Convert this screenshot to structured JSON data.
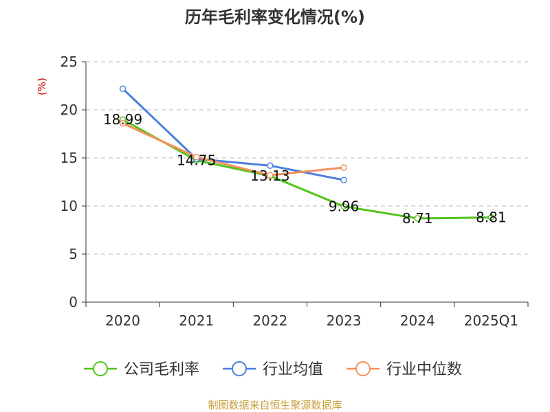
{
  "chart_data": {
    "type": "line",
    "title": "历年毛利率变化情况(%)",
    "ylabel": "(%)",
    "xlabel": "",
    "categories": [
      "2020",
      "2021",
      "2022",
      "2023",
      "2024",
      "2025Q1"
    ],
    "ylim": [
      0,
      25
    ],
    "yticks": [
      "0",
      "5",
      "10",
      "15",
      "20",
      "25"
    ],
    "grid": true,
    "legend_position": "bottom",
    "series": [
      {
        "name": "公司毛利率",
        "values": [
          18.99,
          14.75,
          13.13,
          9.96,
          8.71,
          8.81
        ],
        "labels": [
          "18.99",
          "14.75",
          "13.13",
          "9.96",
          "8.71",
          "8.81"
        ],
        "color": "#52c41a"
      },
      {
        "name": "行业均值",
        "values": [
          22.2,
          14.9,
          14.2,
          12.7,
          null,
          null
        ],
        "color": "#4a7fdc"
      },
      {
        "name": "行业中位数",
        "values": [
          18.6,
          15.1,
          13.2,
          14.0,
          null,
          null
        ],
        "color": "#f5905a"
      }
    ]
  },
  "source": "制图数据来自恒生聚源数据库",
  "colors": {
    "axis": "#333333",
    "grid": "#bbbbbb",
    "unit": "#cc0000",
    "source": "#c8a03c"
  }
}
